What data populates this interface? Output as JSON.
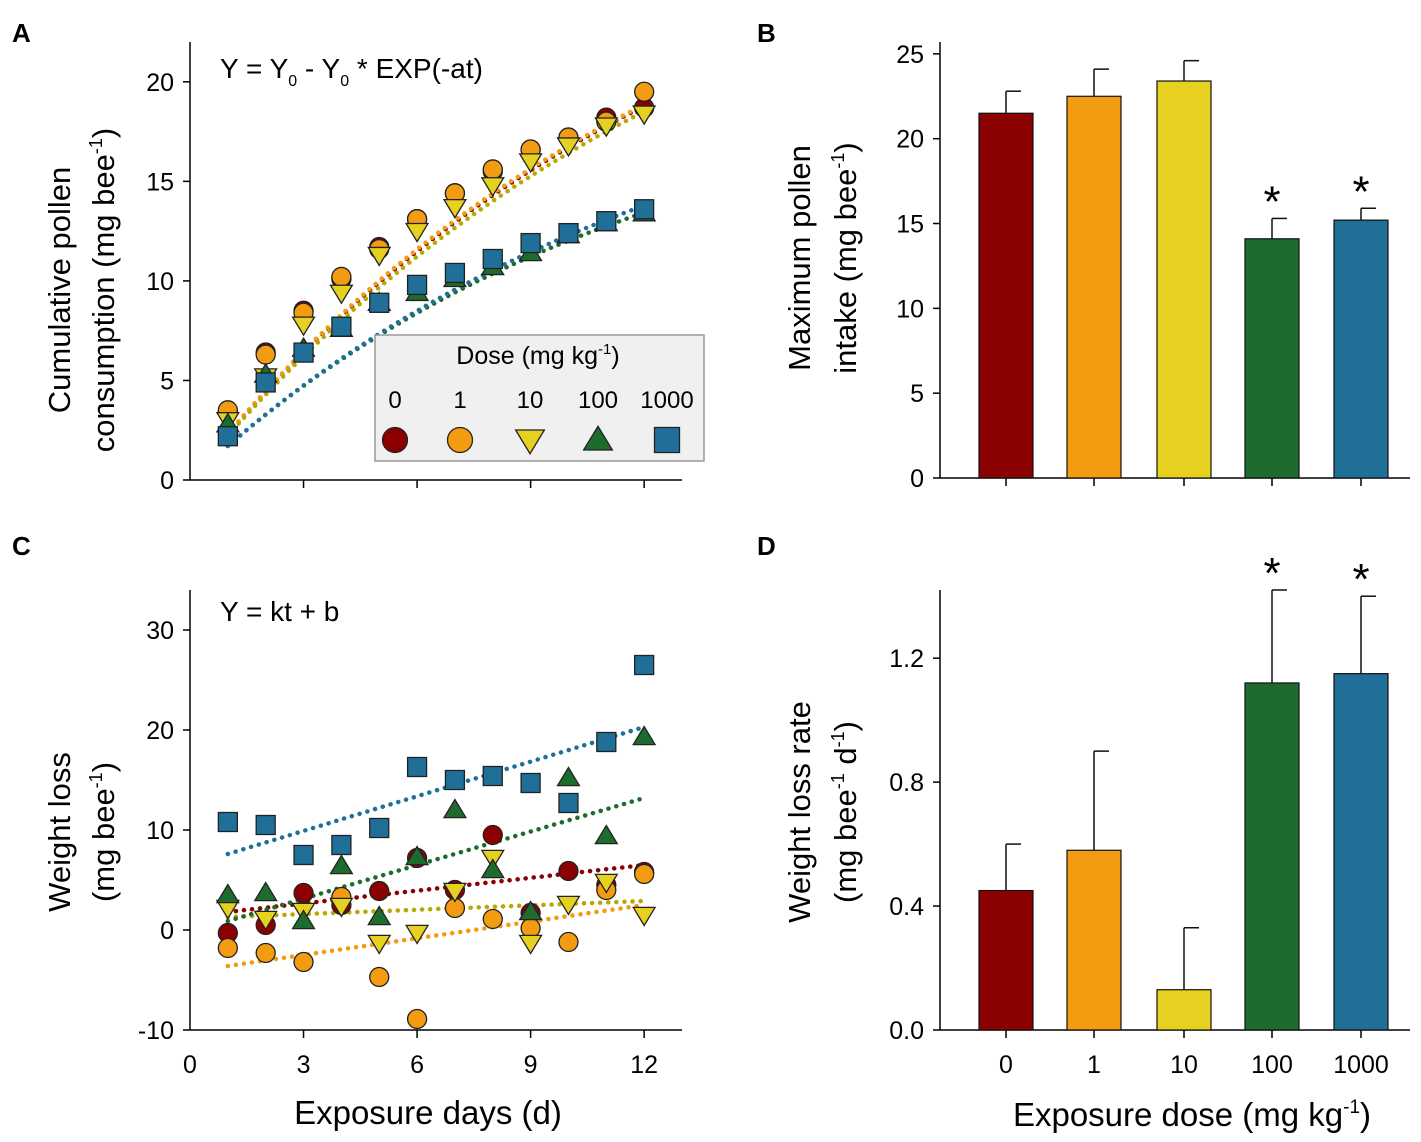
{
  "colors": {
    "0": "#8b0000",
    "1": "#f39c12",
    "10": "#e6d020",
    "100": "#1e6b2e",
    "1000": "#1f6f99"
  },
  "chart_data": [
    {
      "id": "A",
      "panel_label": "A",
      "type": "scatter",
      "equation": {
        "prefix": "Y = Y",
        "sub1": "0",
        "mid": " - Y",
        "sub2": "0",
        "suffix": " * EXP(-at)"
      },
      "ylabel_line1": "Cumulative pollen",
      "ylabel_line2_pre": "consumption (mg bee",
      "ylabel_sup": "-1",
      "ylabel_close": ")",
      "xlim": [
        0,
        13
      ],
      "ylim": [
        0,
        22
      ],
      "yticks": [
        "0",
        "5",
        "10",
        "15",
        "20"
      ],
      "legend": {
        "title_pre": "Dose (mg kg",
        "title_sup": "-1",
        "title_close": ")",
        "labels": [
          "0",
          "1",
          "10",
          "100",
          "1000"
        ],
        "markers": [
          "circle",
          "circle",
          "triangle-down",
          "triangle-up",
          "square"
        ]
      },
      "x": [
        1,
        2,
        3,
        4,
        5,
        6,
        7,
        8,
        9,
        10,
        11,
        12
      ],
      "series": [
        {
          "name": "0",
          "color": "#8b0000",
          "marker": "circle",
          "values": [
            3.4,
            6.4,
            8.5,
            10.1,
            11.7,
            13.1,
            14.4,
            15.5,
            16.6,
            17.2,
            18.2,
            18.7
          ]
        },
        {
          "name": "1",
          "color": "#f39c12",
          "marker": "circle",
          "values": [
            3.5,
            6.3,
            8.4,
            10.2,
            11.6,
            13.1,
            14.4,
            15.6,
            16.6,
            17.2,
            18.0,
            19.5
          ]
        },
        {
          "name": "10",
          "color": "#e6d020",
          "marker": "triangle-down",
          "values": [
            3.0,
            5.2,
            7.8,
            9.4,
            11.3,
            12.5,
            13.7,
            14.8,
            16.0,
            16.8,
            17.8,
            18.4
          ]
        },
        {
          "name": "100",
          "color": "#1e6b2e",
          "marker": "triangle-up",
          "values": [
            2.8,
            5.3,
            6.6,
            7.6,
            8.9,
            9.4,
            10.1,
            10.7,
            11.4,
            12.3,
            12.9,
            13.4
          ]
        },
        {
          "name": "1000",
          "color": "#1f6f99",
          "marker": "square",
          "values": [
            2.2,
            4.9,
            6.4,
            7.7,
            8.9,
            9.8,
            10.4,
            11.1,
            11.9,
            12.4,
            13.0,
            13.6
          ]
        }
      ],
      "fits": [
        {
          "name": "0",
          "color": "#8b0000",
          "type": "exp",
          "Y0": 31.4,
          "a": 0.076
        },
        {
          "name": "1",
          "color": "#f39c12",
          "type": "exp",
          "Y0": 31.0,
          "a": 0.078
        },
        {
          "name": "10",
          "color": "#b8a800",
          "type": "exp",
          "Y0": 32.0,
          "a": 0.072
        },
        {
          "name": "100",
          "color": "#1e6b2e",
          "type": "exp",
          "Y0": 21.0,
          "a": 0.085
        },
        {
          "name": "1000",
          "color": "#1f6f99",
          "type": "exp",
          "Y0": 22.5,
          "a": 0.079
        }
      ]
    },
    {
      "id": "B",
      "panel_label": "B",
      "type": "bar",
      "ylabel_line1": "Maximum pollen",
      "ylabel_line2_pre": "intake (mg bee",
      "ylabel_sup": "-1",
      "ylabel_close": ")",
      "ylim": [
        0,
        25.7
      ],
      "yticks": [
        "0",
        "5",
        "10",
        "15",
        "20",
        "25"
      ],
      "categories": [
        "0",
        "1",
        "10",
        "100",
        "1000"
      ],
      "values": [
        21.5,
        22.5,
        23.4,
        14.1,
        15.2
      ],
      "errors": [
        1.3,
        1.6,
        1.2,
        1.2,
        0.7
      ],
      "colors": [
        "#8b0000",
        "#f39c12",
        "#e6d020",
        "#1e6b2e",
        "#1f6f99"
      ],
      "significance": [
        "",
        "",
        "",
        "*",
        "*"
      ]
    },
    {
      "id": "C",
      "panel_label": "C",
      "type": "scatter",
      "equation": {
        "text": "Y = kt + b"
      },
      "ylabel_line1": "Weight loss",
      "ylabel_line2_pre": "(mg bee",
      "ylabel_sup": "-1",
      "ylabel_close": ")",
      "xlabel": "Exposure days (d)",
      "xlim": [
        0,
        13
      ],
      "ylim": [
        -10,
        34
      ],
      "xticks": [
        "0",
        "3",
        "6",
        "9",
        "12"
      ],
      "yticks": [
        "-10",
        "0",
        "10",
        "20",
        "30"
      ],
      "x": [
        1,
        2,
        3,
        4,
        5,
        6,
        7,
        8,
        9,
        10,
        11,
        12
      ],
      "series": [
        {
          "name": "0",
          "color": "#8b0000",
          "marker": "circle",
          "values": [
            -0.3,
            0.5,
            3.7,
            2.5,
            3.9,
            7.2,
            4.0,
            9.5,
            1.7,
            5.9,
            4.5,
            5.8
          ]
        },
        {
          "name": "1",
          "color": "#f39c12",
          "marker": "circle",
          "values": [
            -1.8,
            -2.3,
            -3.2,
            3.3,
            -4.7,
            -8.9,
            2.2,
            1.1,
            0.2,
            -1.2,
            4.0,
            5.6
          ]
        },
        {
          "name": "10",
          "color": "#e6d020",
          "marker": "triangle-down",
          "values": [
            2.2,
            1.1,
            1.9,
            2.4,
            -1.3,
            -0.3,
            3.9,
            7.2,
            -1.3,
            2.6,
            4.8,
            1.5
          ]
        },
        {
          "name": "100",
          "color": "#1e6b2e",
          "marker": "triangle-up",
          "values": [
            3.5,
            3.7,
            0.9,
            6.4,
            1.3,
            7.3,
            12.0,
            6.0,
            1.8,
            15.2,
            9.4,
            19.3
          ]
        },
        {
          "name": "1000",
          "color": "#1f6f99",
          "marker": "square",
          "values": [
            10.8,
            10.5,
            7.5,
            8.5,
            10.2,
            16.3,
            15.0,
            15.4,
            14.7,
            12.7,
            18.8,
            26.5
          ]
        }
      ],
      "fits": [
        {
          "name": "0",
          "color": "#8b0000",
          "type": "linear",
          "y1": 1.8,
          "y12": 6.5
        },
        {
          "name": "1",
          "color": "#f39c12",
          "type": "linear",
          "y1": -3.6,
          "y12": 2.5
        },
        {
          "name": "10",
          "color": "#b8a800",
          "type": "linear",
          "y1": 1.3,
          "y12": 2.9
        },
        {
          "name": "100",
          "color": "#1e6b2e",
          "type": "linear",
          "y1": 0.9,
          "y12": 13.2
        },
        {
          "name": "1000",
          "color": "#1f6f99",
          "type": "linear",
          "y1": 7.6,
          "y12": 20.3
        }
      ]
    },
    {
      "id": "D",
      "panel_label": "D",
      "type": "bar",
      "ylabel_line1": "Weight loss rate",
      "ylabel_line2_pre": "(mg bee",
      "ylabel_sup": "-1",
      "ylabel_mid": " d",
      "ylabel_sup2": "-1",
      "ylabel_close": ")",
      "xlabel_pre": "Exposure dose (mg kg",
      "xlabel_sup": "-1",
      "xlabel_close": ")",
      "ylim": [
        0,
        1.42
      ],
      "yticks": [
        "0.0",
        "0.4",
        "0.8",
        "1.2"
      ],
      "categories": [
        "0",
        "1",
        "10",
        "100",
        "1000"
      ],
      "values": [
        0.45,
        0.58,
        0.13,
        1.12,
        1.15
      ],
      "errors": [
        0.15,
        0.32,
        0.2,
        0.3,
        0.25
      ],
      "colors": [
        "#8b0000",
        "#f39c12",
        "#e6d020",
        "#1e6b2e",
        "#1f6f99"
      ],
      "significance": [
        "",
        "",
        "",
        "*",
        "*"
      ]
    }
  ]
}
